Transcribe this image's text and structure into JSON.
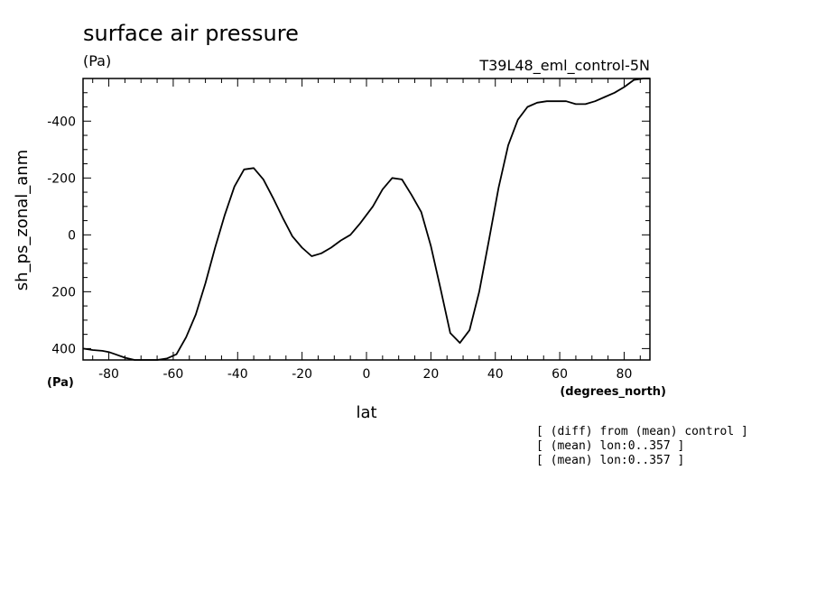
{
  "chart_data": {
    "type": "line",
    "title": "surface air pressure",
    "units": "(Pa)",
    "experiment": "T39L48_eml_control-5N",
    "xlabel": "lat",
    "x_units": "(degrees_north)",
    "ylabel": "sh_ps_zonal_anm",
    "y_units": "(Pa)",
    "xlim": [
      -88,
      88
    ],
    "ylim": [
      440,
      -550
    ],
    "y_inverted": true,
    "x_ticks": [
      -80,
      -60,
      -40,
      -20,
      0,
      20,
      40,
      60,
      80
    ],
    "x_tick_labels": [
      "-80",
      "-60",
      "-40",
      "-20",
      "0",
      "20",
      "40",
      "60",
      "80"
    ],
    "y_ticks": [
      -400,
      -200,
      0,
      200,
      400
    ],
    "y_tick_labels": [
      "-400",
      "-200",
      "0",
      "200",
      "400"
    ],
    "notes": [
      "[ (diff) from (mean) control ]",
      "[ (mean) lon:0..357 ]",
      "[ (mean) lon:0..357 ]"
    ],
    "series": [
      {
        "x": [
          -88,
          -85,
          -82,
          -80,
          -78,
          -75,
          -72,
          -68,
          -65,
          -62,
          -59,
          -56,
          -53,
          -50,
          -47,
          -44,
          -41,
          -38,
          -35,
          -32,
          -29,
          -26,
          -23,
          -20,
          -17,
          -14,
          -11,
          -8,
          -5,
          -2,
          2,
          5,
          8,
          11,
          14,
          17,
          20,
          23,
          26,
          29,
          32,
          35,
          38,
          41,
          44,
          47,
          50,
          53,
          56,
          59,
          62,
          65,
          68,
          71,
          74,
          77,
          80,
          83,
          86,
          88
        ],
        "y": [
          400,
          405,
          408,
          412,
          420,
          432,
          440,
          443,
          440,
          435,
          420,
          360,
          280,
          170,
          45,
          -70,
          -170,
          -230,
          -235,
          -195,
          -130,
          -60,
          5,
          45,
          75,
          65,
          45,
          20,
          0,
          -40,
          -100,
          -160,
          -200,
          -195,
          -140,
          -80,
          40,
          190,
          345,
          380,
          335,
          200,
          20,
          -165,
          -315,
          -405,
          -450,
          -465,
          -470,
          -470,
          -470,
          -460,
          -460,
          -470,
          -485,
          -500,
          -520,
          -545,
          -560,
          -560
        ]
      }
    ]
  }
}
